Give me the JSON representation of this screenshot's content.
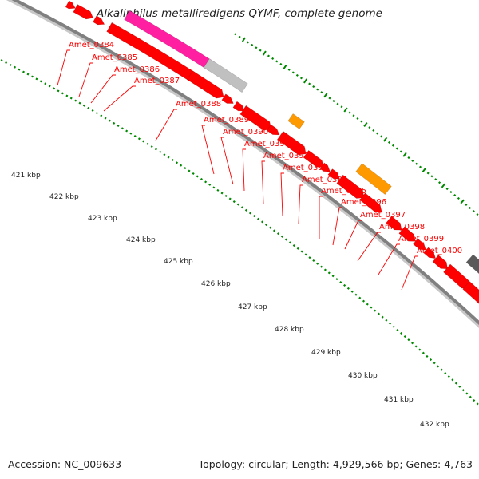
{
  "title": "Alkaliphilus metalliredigens QYMF, complete genome",
  "footer": {
    "accession": "Accession: NC_009633",
    "topology": "Topology: circular; Length: 4,929,566 bp; Genes: 4,763"
  },
  "colors": {
    "backbone": "#808080",
    "backbone_shadow": "#c8c8c8",
    "gene_red": "#ff0000",
    "gene_pink": "#ff1fa0",
    "gene_gray": "#c0c0c0",
    "gene_orange": "#ff9900",
    "gene_blue": "#0a0aff",
    "gene_dark": "#5a5a5a",
    "gene_cyan": "#00c8d0",
    "tick_green": "#008800",
    "label_red": "#ff0000"
  },
  "scale_labels": [
    "421 kbp",
    "422 kbp",
    "423 kbp",
    "424 kbp",
    "425 kbp",
    "426 kbp",
    "427 kbp",
    "428 kbp",
    "429 kbp",
    "430 kbp",
    "431 kbp",
    "432 kbp"
  ],
  "gene_labels": [
    "Amet_0384",
    "Amet_0385",
    "Amet_0386",
    "Amet_0387",
    "Amet_0388",
    "Amet_0389",
    "Amet_0390",
    "Amet_0391",
    "Amet_0392",
    "Amet_0393",
    "Amet_0394",
    "Amet_0395",
    "Amet_0396",
    "Amet_0397",
    "Amet_0398",
    "Amet_0399",
    "Amet_0400"
  ]
}
